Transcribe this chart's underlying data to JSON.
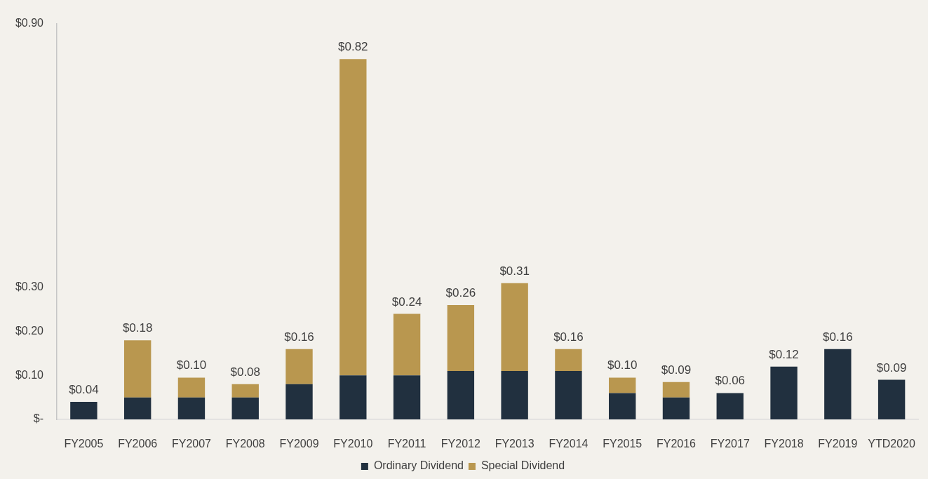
{
  "chart_data": {
    "type": "bar",
    "stacked": true,
    "categories": [
      "FY2005",
      "FY2006",
      "FY2007",
      "FY2008",
      "FY2009",
      "FY2010",
      "FY2011",
      "FY2012",
      "FY2013",
      "FY2014",
      "FY2015",
      "FY2016",
      "FY2017",
      "FY2018",
      "FY2019",
      "YTD2020"
    ],
    "series": [
      {
        "name": "Ordinary Dividend",
        "color": "#21303f",
        "values": [
          0.04,
          0.05,
          0.05,
          0.05,
          0.08,
          0.1,
          0.1,
          0.11,
          0.11,
          0.11,
          0.06,
          0.05,
          0.06,
          0.12,
          0.16,
          0.09
        ]
      },
      {
        "name": "Special Dividend",
        "color": "#b9974f",
        "values": [
          null,
          0.13,
          0.045,
          0.03,
          0.08,
          0.72,
          0.14,
          0.15,
          0.2,
          0.05,
          0.035,
          0.035,
          null,
          null,
          null,
          null
        ]
      }
    ],
    "totals": [
      "$0.04",
      "$0.18",
      "$0.10",
      "$0.08",
      "$0.16",
      "$0.82",
      "$0.24",
      "$0.26",
      "$0.31",
      "$0.16",
      "$0.10",
      "$0.09",
      "$0.06",
      "$0.12",
      "$0.16",
      "$0.09"
    ],
    "ylim": [
      0,
      0.9
    ],
    "yticks": [
      {
        "value": 0,
        "label": "$-"
      },
      {
        "value": 0.1,
        "label": "$0.10"
      },
      {
        "value": 0.2,
        "label": "$0.20"
      },
      {
        "value": 0.3,
        "label": "$0.30"
      },
      {
        "value": 0.9,
        "label": "$0.90"
      }
    ],
    "grid": false,
    "legend": "bottom"
  }
}
